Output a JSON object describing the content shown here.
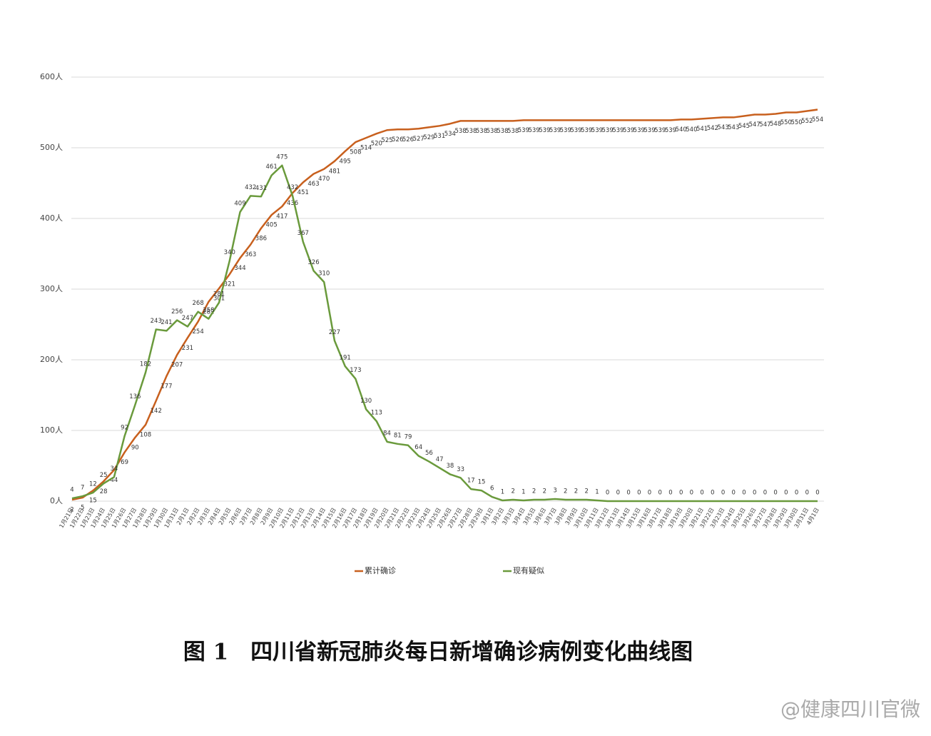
{
  "chart_data": {
    "type": "line",
    "title": "图 1　四川省新冠肺炎每日新增确诊病例变化曲线图",
    "categories": [
      "1月21日",
      "1月22日",
      "1月23日",
      "1月24日",
      "1月25日",
      "1月26日",
      "1月27日",
      "1月28日",
      "1月29日",
      "1月30日",
      "1月31日",
      "2月1日",
      "2月2日",
      "2月3日",
      "2月4日",
      "2月5日",
      "2月6日",
      "2月7日",
      "2月8日",
      "2月9日",
      "2月10日",
      "2月11日",
      "2月12日",
      "2月13日",
      "2月14日",
      "2月15日",
      "2月16日",
      "2月17日",
      "2月18日",
      "2月19日",
      "2月20日",
      "2月21日",
      "2月22日",
      "2月23日",
      "2月24日",
      "2月25日",
      "2月26日",
      "2月27日",
      "2月28日",
      "2月29日",
      "3月1日",
      "3月2日",
      "3月3日",
      "3月4日",
      "3月5日",
      "3月6日",
      "3月7日",
      "3月8日",
      "3月9日",
      "3月10日",
      "3月11日",
      "3月12日",
      "3月13日",
      "3月14日",
      "3月15日",
      "3月16日",
      "3月17日",
      "3月18日",
      "3月19日",
      "3月20日",
      "3月21日",
      "3月22日",
      "3月23日",
      "3月24日",
      "3月25日",
      "3月26日",
      "3月27日",
      "3月28日",
      "3月29日",
      "3月30日",
      "3月31日",
      "4月1日"
    ],
    "series": [
      {
        "name": "累计确诊",
        "color": "#c8601e",
        "values": [
          2,
          5,
          15,
          28,
          44,
          69,
          90,
          108,
          142,
          177,
          207,
          231,
          254,
          282,
          301,
          321,
          344,
          363,
          386,
          405,
          417,
          436,
          451,
          463,
          470,
          481,
          495,
          508,
          514,
          520,
          525,
          526,
          526,
          527,
          529,
          531,
          534,
          538,
          538,
          538,
          538,
          538,
          538,
          539,
          539,
          539,
          539,
          539,
          539,
          539,
          539,
          539,
          539,
          539,
          539,
          539,
          539,
          539,
          540,
          540,
          541,
          542,
          543,
          543,
          545,
          547,
          547,
          548,
          550,
          550,
          552,
          554
        ]
      },
      {
        "name": "现有疑似",
        "color": "#6a9a3c",
        "values": [
          4,
          7,
          12,
          25,
          34,
          92,
          136,
          182,
          243,
          241,
          256,
          247,
          268,
          258,
          281,
          340,
          409,
          432,
          431,
          461,
          475,
          432,
          367,
          326,
          310,
          227,
          191,
          173,
          130,
          113,
          84,
          81,
          79,
          64,
          56,
          47,
          38,
          33,
          17,
          15,
          6,
          1,
          2,
          1,
          2,
          2,
          3,
          2,
          2,
          2,
          1,
          0,
          0,
          0,
          0,
          0,
          0,
          0,
          0,
          0,
          0,
          0,
          0,
          0,
          0,
          0,
          0,
          0,
          0,
          0,
          0,
          0
        ]
      }
    ],
    "ylim": [
      0,
      600
    ],
    "yticks": [
      {
        "value": 0,
        "label": "0人"
      },
      {
        "value": 100,
        "label": "100人"
      },
      {
        "value": 200,
        "label": "200人"
      },
      {
        "value": 300,
        "label": "300人"
      },
      {
        "value": 400,
        "label": "400人"
      },
      {
        "value": 500,
        "label": "500人"
      },
      {
        "value": 600,
        "label": "600人"
      }
    ],
    "grid": true
  },
  "watermark": "@健康四川官微"
}
